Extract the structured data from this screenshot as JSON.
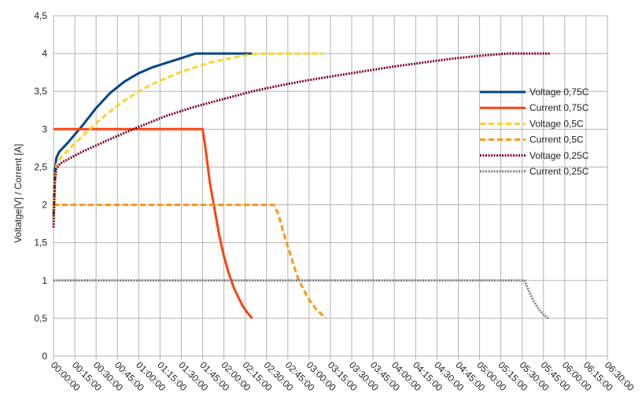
{
  "chart_data": {
    "type": "line",
    "title": "",
    "xlabel": "",
    "ylabel": "Voltatge[V] / Corrent [A]",
    "xlim": [
      0,
      23400
    ],
    "ylim": [
      0,
      4.5
    ],
    "y_ticks": [
      "0",
      "0,5",
      "1",
      "1,5",
      "2",
      "2,5",
      "3",
      "3,5",
      "4",
      "4,5"
    ],
    "x_ticks": [
      "00:00:00",
      "00:15:00",
      "00:30:00",
      "00:45:00",
      "01:00:00",
      "01:15:00",
      "01:30:00",
      "01:45:00",
      "02:00:00",
      "02:15:00",
      "02:30:00",
      "02:45:00",
      "03:00:00",
      "03:15:00",
      "03:30:00",
      "03:45:00",
      "04:00:00",
      "04:15:00",
      "04:30:00",
      "04:45:00",
      "05:00:00",
      "05:15:00",
      "05:30:00",
      "05:45:00",
      "06:00:00",
      "06:15:00",
      "06:30:00"
    ],
    "grid": true,
    "legend_position": "right",
    "series": [
      {
        "name": "Voltage 0,75C",
        "color": "#004586",
        "dash": "solid",
        "x": [
          0,
          60,
          120,
          240,
          600,
          1200,
          1800,
          2400,
          3000,
          3600,
          4200,
          4800,
          5400,
          6000,
          6600,
          7200,
          7800,
          8400
        ],
        "y": [
          1.85,
          2.45,
          2.62,
          2.7,
          2.82,
          3.04,
          3.28,
          3.48,
          3.63,
          3.74,
          3.82,
          3.88,
          3.94,
          4.0,
          4.0,
          4.0,
          4.0,
          4.0
        ]
      },
      {
        "name": "Current 0,75C",
        "color": "#ff420e",
        "dash": "solid",
        "x": [
          0,
          600,
          1200,
          1800,
          2400,
          3000,
          3600,
          4200,
          4800,
          5400,
          6000,
          6300,
          6400,
          6500,
          6600,
          6800,
          7000,
          7200,
          7400,
          7600,
          7800,
          8000,
          8200,
          8400
        ],
        "y": [
          3.0,
          3.0,
          3.0,
          3.0,
          3.0,
          3.0,
          3.0,
          3.0,
          3.0,
          3.0,
          3.0,
          3.0,
          2.8,
          2.55,
          2.3,
          1.95,
          1.6,
          1.32,
          1.1,
          0.92,
          0.78,
          0.66,
          0.57,
          0.5
        ]
      },
      {
        "name": "Voltage 0,5C",
        "color": "#ffd320",
        "dash": "dash",
        "x": [
          0,
          60,
          120,
          240,
          600,
          1200,
          1800,
          2400,
          3000,
          3600,
          4200,
          4800,
          5400,
          6000,
          6600,
          7200,
          7800,
          8400,
          9000,
          9600,
          10200,
          10800,
          11400
        ],
        "y": [
          1.8,
          2.35,
          2.52,
          2.6,
          2.72,
          2.9,
          3.08,
          3.24,
          3.38,
          3.5,
          3.6,
          3.68,
          3.76,
          3.82,
          3.88,
          3.92,
          3.96,
          3.99,
          4.0,
          4.0,
          4.0,
          4.0,
          4.0
        ]
      },
      {
        "name": "Current 0,5C",
        "color": "#ff950e",
        "dash": "dash",
        "x": [
          0,
          1200,
          2400,
          3600,
          4800,
          6000,
          7200,
          8400,
          9300,
          9500,
          9700,
          9900,
          10100,
          10300,
          10500,
          10700,
          10900,
          11100,
          11300,
          11500
        ],
        "y": [
          2.0,
          2.0,
          2.0,
          2.0,
          2.0,
          2.0,
          2.0,
          2.0,
          2.0,
          1.88,
          1.65,
          1.45,
          1.25,
          1.05,
          0.92,
          0.8,
          0.7,
          0.62,
          0.56,
          0.5
        ]
      },
      {
        "name": "Voltage 0,25C",
        "color": "#7e0021",
        "dash": "dot",
        "x": [
          0,
          60,
          120,
          300,
          600,
          1200,
          2400,
          3600,
          4800,
          6000,
          7200,
          8400,
          9600,
          10800,
          12000,
          13200,
          14400,
          15600,
          16800,
          18000,
          19200,
          20400,
          21000
        ],
        "y": [
          1.7,
          2.3,
          2.48,
          2.55,
          2.6,
          2.7,
          2.87,
          3.03,
          3.18,
          3.3,
          3.4,
          3.5,
          3.58,
          3.65,
          3.71,
          3.77,
          3.83,
          3.88,
          3.93,
          3.97,
          4.0,
          4.0,
          4.0
        ]
      },
      {
        "name": "Current 0,25C",
        "color": "#808080",
        "dash": "dot",
        "x": [
          0,
          2400,
          4800,
          7200,
          9600,
          12000,
          14400,
          16800,
          19200,
          19900,
          20100,
          20300,
          20500,
          20700,
          20900
        ],
        "y": [
          1.0,
          1.0,
          1.0,
          1.0,
          1.0,
          1.0,
          1.0,
          1.0,
          1.0,
          1.0,
          0.85,
          0.72,
          0.62,
          0.55,
          0.5
        ]
      }
    ]
  }
}
